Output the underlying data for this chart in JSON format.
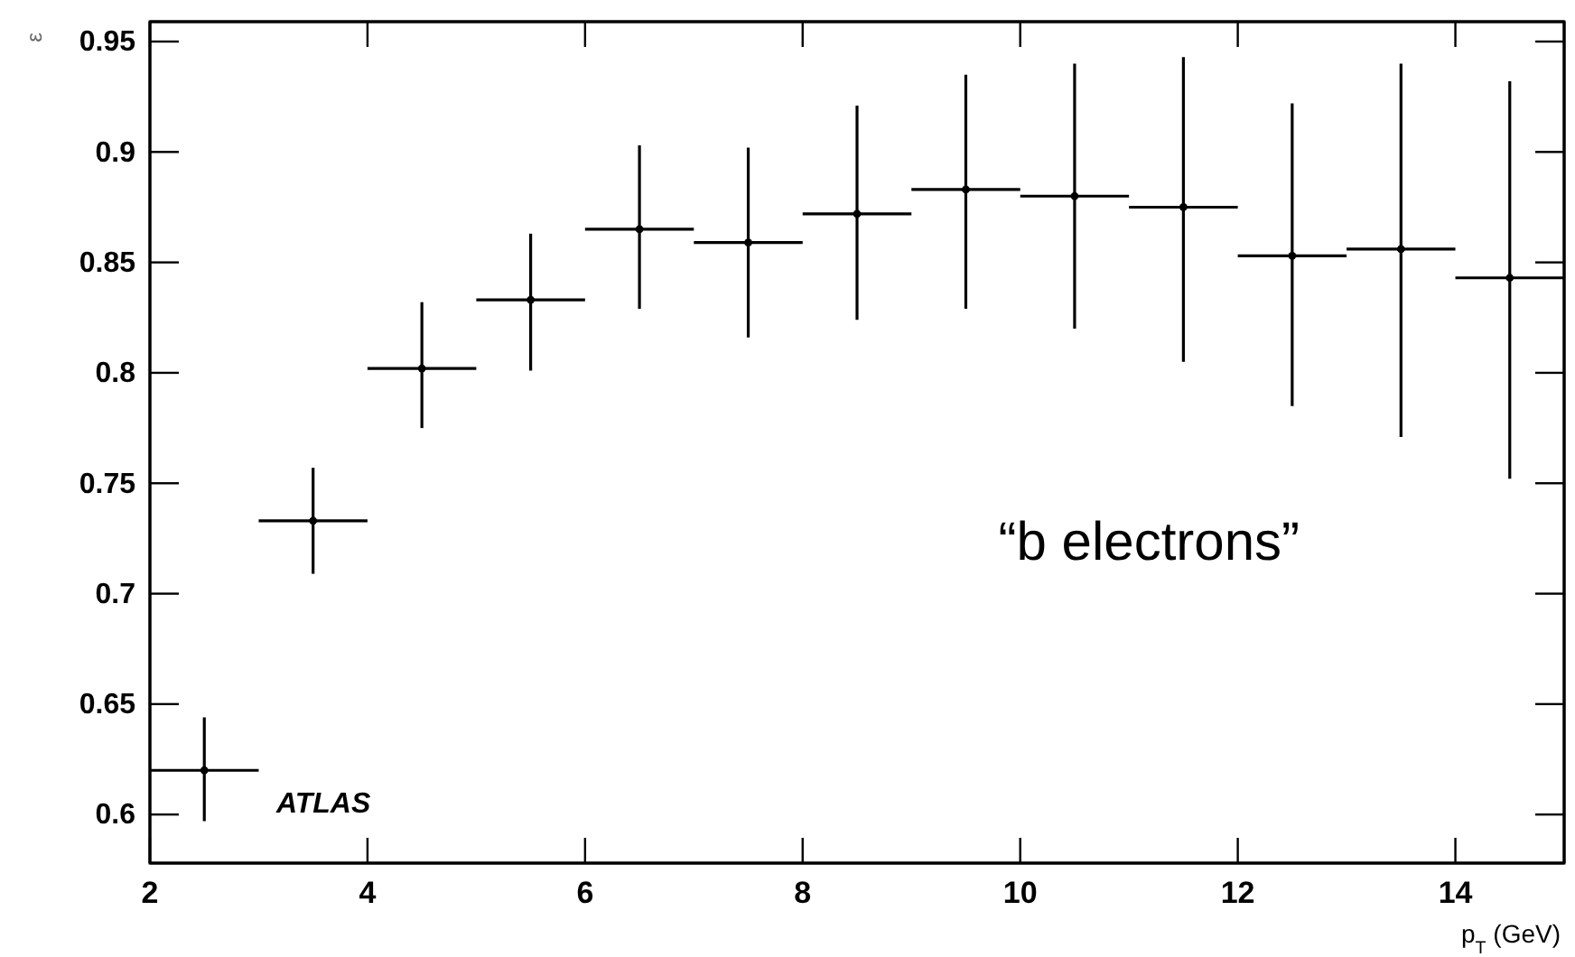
{
  "chart_data": {
    "type": "scatter",
    "xlabel": "p$_{T}$ (GeV)",
    "ylabel": "ε",
    "x": [
      2.5,
      3.5,
      4.5,
      5.5,
      6.5,
      7.5,
      8.5,
      9.5,
      10.5,
      11.5,
      12.5,
      13.5,
      14.5
    ],
    "series": [
      {
        "color": "#000000",
        "values": [
          0.62,
          0.733,
          0.802,
          0.833,
          0.865,
          0.859,
          0.872,
          0.883,
          0.88,
          0.875,
          0.853,
          0.856,
          0.843
        ],
        "errors": [
          [
            0.597,
            0.644
          ],
          [
            0.709,
            0.757
          ],
          [
            0.775,
            0.832
          ],
          [
            0.801,
            0.863
          ],
          [
            0.829,
            0.903
          ],
          [
            0.816,
            0.902
          ],
          [
            0.824,
            0.921
          ],
          [
            0.829,
            0.935
          ],
          [
            0.82,
            0.94
          ],
          [
            0.805,
            0.943
          ],
          [
            0.785,
            0.922
          ],
          [
            0.771,
            0.94
          ],
          [
            0.752,
            0.932
          ]
        ],
        "xerrors": [
          0.5,
          0.5,
          0.5,
          0.5,
          0.5,
          0.5,
          0.5,
          0.5,
          0.5,
          0.5,
          0.5,
          0.5,
          0.5
        ]
      }
    ],
    "xlim": [
      2,
      15
    ],
    "ylim": [
      0.578,
      0.959
    ],
    "xticks": [
      2,
      4,
      6,
      8,
      10,
      12,
      14
    ],
    "yticks": [
      0.6,
      0.65,
      0.7,
      0.75,
      0.8,
      0.85,
      0.9,
      0.95
    ],
    "grid": false,
    "annotations": [
      "“b electrons”",
      "ATLAS"
    ]
  }
}
